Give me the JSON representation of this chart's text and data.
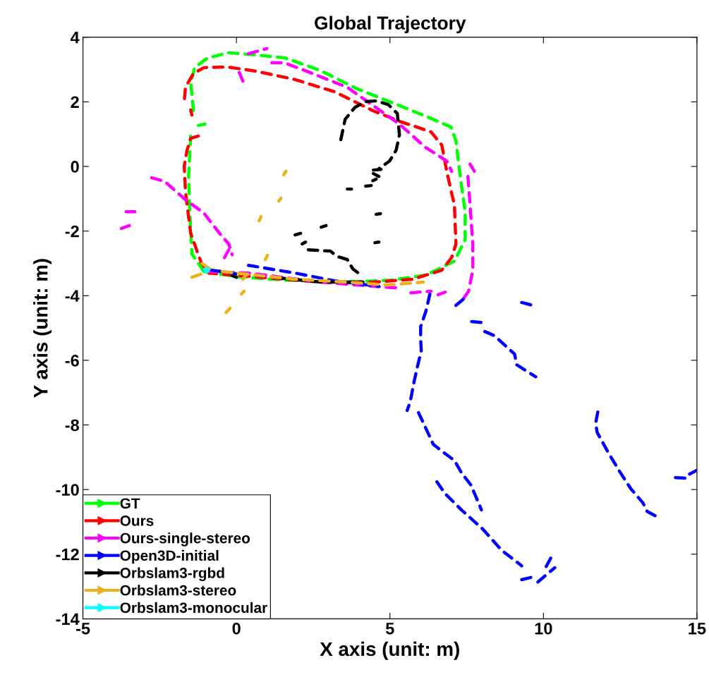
{
  "chart_data": {
    "type": "line",
    "title": "Global Trajectory",
    "xlabel": "X axis (unit: m)",
    "ylabel": "Y axis (unit: m)",
    "xlim": [
      -5,
      15
    ],
    "xticks": [
      -5,
      0,
      5,
      10,
      15
    ],
    "ylim": [
      -14,
      4
    ],
    "yticks": [
      -14,
      -12,
      -10,
      -8,
      -6,
      -4,
      -2,
      0,
      2,
      4
    ],
    "grid": false,
    "legend": "bottom left",
    "line_style": "dashed",
    "marker": "none",
    "series": [
      {
        "name": "GT",
        "color": "#00ff00",
        "x": [
          -1.06,
          -1.45,
          -1.52,
          -1.56,
          -1.49,
          null,
          -1.24,
          -1.03,
          null,
          -1.4,
          -1.49,
          -1.36,
          -0.94,
          -0.25,
          0.67,
          1.59,
          2.74,
          3.89,
          5.03,
          6.18,
          6.99,
          7.15,
          7.29,
          7.45,
          7.45,
          7.1,
          6.18,
          5.03,
          3.43,
          1.59,
          -0.02,
          -1.06
        ],
        "values": [
          -3.25,
          -2.71,
          -1.4,
          -0.31,
          0.94,
          null,
          1.27,
          1.31,
          null,
          1.73,
          2.6,
          3.06,
          3.36,
          3.52,
          3.45,
          3.36,
          2.97,
          2.42,
          1.99,
          1.55,
          1.22,
          0.79,
          -0.31,
          -1.4,
          -2.27,
          -2.93,
          -3.36,
          -3.52,
          -3.58,
          -3.52,
          -3.41,
          -3.25
        ]
      },
      {
        "name": "Ours",
        "color": "#ff0000",
        "x": [
          -1.24,
          -1.49,
          -1.61,
          -1.7,
          -1.66,
          -1.49,
          -1.15,
          -0.9,
          1.06,
          2.76,
          4.46,
          5.75,
          6.69,
          7.01,
          7.15,
          7.1,
          6.85,
          6.69,
          6.34,
          5.31,
          4.46,
          3.2,
          1.91,
          0.64,
          -0.3,
          -1.06,
          -1.4,
          -1.66,
          -1.7,
          null,
          -1.49,
          -1.45
        ],
        "values": [
          0.94,
          0.87,
          0.5,
          0.02,
          -0.79,
          -2.07,
          -2.97,
          -3.3,
          -3.45,
          -3.58,
          -3.58,
          -3.49,
          -3.21,
          -2.82,
          -2.4,
          -1.2,
          -0.15,
          0.66,
          1.07,
          1.4,
          1.72,
          2.31,
          2.69,
          2.95,
          3.08,
          3.06,
          2.88,
          2.45,
          2.03,
          null,
          1.75,
          1.59
        ]
      },
      {
        "name": "Ours-single-stereo",
        "color": "#ff00ff",
        "x": [
          -3.75,
          -3.49,
          null,
          -3.59,
          -3.31,
          null,
          -2.76,
          -2.34,
          -1.66,
          -1.06,
          -0.55,
          -0.25,
          -0.14,
          null,
          -0.39,
          -0.25,
          null,
          0.21,
          0.05,
          null,
          0.39,
          0.99,
          null,
          1.15,
          1.56,
          2.34,
          3.61,
          4.46,
          5.31,
          6.16,
          6.85,
          7.01,
          null,
          7.61,
          7.75,
          null,
          7.54,
          7.61,
          7.7,
          7.7,
          7.56,
          7.4,
          null,
          -0.94,
          0.39,
          2.76,
          4.74,
          5.33,
          null,
          5.68,
          6.34,
          null,
          6.57,
          6.8
        ],
        "values": [
          -1.92,
          -1.83,
          null,
          -1.4,
          -1.4,
          null,
          -0.35,
          -0.46,
          -1.03,
          -1.44,
          -2.07,
          -2.4,
          -2.73,
          null,
          -2.82,
          -2.58,
          null,
          2.64,
          3.01,
          null,
          3.49,
          3.65,
          null,
          3.21,
          3.21,
          2.93,
          2.45,
          1.88,
          1.31,
          0.59,
          0.17,
          -0.15,
          null,
          0.07,
          -0.15,
          null,
          -0.31,
          -1.2,
          -2.4,
          -3.21,
          -3.86,
          -4.08,
          null,
          -3.25,
          -3.3,
          -3.58,
          -3.73,
          -3.76,
          null,
          -3.91,
          -3.86,
          null,
          -3.97,
          -3.89
        ]
      },
      {
        "name": "Open3D-initial",
        "color": "#0000ff",
        "x": [
          -0.8,
          -0.02,
          null,
          0.39,
          1.91,
          3.2,
          4.64,
          null,
          6.3,
          6.18,
          6.0,
          6.0,
          6.02,
          5.91,
          5.79,
          5.66,
          5.56,
          null,
          5.93,
          6.07,
          6.41,
          6.8,
          7.1,
          7.33,
          7.63,
          7.79,
          7.98,
          null,
          6.53,
          6.8,
          7.33,
          8.02,
          8.64,
          9.29,
          null,
          9.29,
          9.63,
          null,
          9.82,
          10.09,
          10.37,
          null,
          10.09,
          10.25,
          null,
          7.15,
          7.45,
          null,
          9.29,
          9.66,
          null,
          7.66,
          8.0,
          null,
          8.09,
          8.41,
          9.06,
          9.13,
          9.75,
          null,
          11.77,
          11.7,
          11.75,
          12.09,
          12.46,
          12.85,
          13.24,
          13.38,
          13.72,
          null,
          14.3,
          14.64,
          null,
          14.76,
          14.98
        ],
        "values": [
          -3.21,
          -3.32,
          null,
          -3.06,
          -3.3,
          -3.54,
          -3.71,
          null,
          -3.95,
          -4.45,
          -4.96,
          -5.33,
          -5.7,
          -6.14,
          -6.64,
          -7.29,
          -7.55,
          null,
          -7.62,
          -7.9,
          -8.6,
          -8.89,
          -9.1,
          -9.48,
          -9.85,
          -10.2,
          -10.63,
          null,
          -9.76,
          -10.13,
          -10.63,
          -11.22,
          -11.88,
          -12.36,
          null,
          -12.79,
          -12.71,
          null,
          -12.86,
          -12.64,
          -12.42,
          null,
          -12.38,
          -12.1,
          null,
          -4.3,
          -4.06,
          null,
          -4.21,
          -4.3,
          null,
          -4.8,
          -4.83,
          null,
          -5.11,
          -5.24,
          -5.81,
          -6.14,
          -6.51,
          null,
          -7.6,
          -7.95,
          -8.23,
          -8.82,
          -9.41,
          -9.98,
          -10.41,
          -10.68,
          -10.85,
          null,
          -9.63,
          -9.65,
          null,
          -9.52,
          -9.41
        ]
      },
      {
        "name": "Orbslam3-rgbd",
        "color": "#000000",
        "x": [
          3.4,
          3.54,
          3.86,
          4.21,
          4.55,
          4.94,
          5.24,
          5.31,
          5.2,
          4.99,
          4.64,
          null,
          4.46,
          4.71,
          null,
          4.46,
          4.64,
          null,
          4.44,
          4.55,
          null,
          4.21,
          4.39,
          null,
          3.61,
          3.75,
          null,
          4.55,
          4.69,
          null,
          2.76,
          2.92,
          null,
          1.91,
          2.09,
          null,
          4.51,
          4.64,
          null,
          2.14,
          2.25,
          null,
          2.34,
          3.06,
          3.29,
          3.61,
          3.79,
          4.0,
          null,
          -0.14,
          0.0,
          null,
          1.4,
          2.76,
          4.11
        ],
        "values": [
          0.83,
          1.46,
          1.83,
          2.01,
          2.03,
          1.92,
          1.64,
          0.98,
          0.5,
          0.17,
          -0.07,
          null,
          -0.11,
          -0.09,
          null,
          -0.22,
          -0.31,
          null,
          -0.44,
          -0.39,
          null,
          -0.61,
          -0.59,
          null,
          -0.7,
          -0.7,
          null,
          -1.48,
          -1.46,
          null,
          -1.88,
          -1.83,
          null,
          -2.12,
          -2.07,
          null,
          -2.36,
          -2.34,
          null,
          -2.4,
          -2.34,
          null,
          -2.58,
          -2.62,
          -2.79,
          -2.88,
          -3.17,
          -3.32,
          null,
          -3.38,
          -3.43,
          null,
          -3.45,
          -3.58,
          -3.58
        ]
      },
      {
        "name": "Orbslam3-stereo",
        "color": "#edb120",
        "x": [
          1.61,
          1.54,
          null,
          1.45,
          1.38,
          null,
          0.8,
          0.74,
          null,
          1.01,
          0.94,
          null,
          0.3,
          0.21,
          null,
          0.25,
          0.16,
          null,
          -0.21,
          -0.34,
          null,
          -1.45,
          -1.06,
          null,
          -1.12,
          -0.88,
          null,
          -0.46,
          0.39,
          1.91,
          3.61,
          4.9,
          6.09
        ],
        "values": [
          -0.15,
          -0.26,
          null,
          -0.98,
          -1.07,
          null,
          -1.55,
          -1.68,
          null,
          -2.75,
          -2.88,
          null,
          -3.38,
          -3.49,
          null,
          -3.86,
          -3.95,
          null,
          -4.39,
          -4.52,
          null,
          -3.43,
          -3.3,
          null,
          -3.0,
          -3.16,
          null,
          -3.25,
          -3.34,
          -3.49,
          -3.58,
          -3.67,
          -3.58
        ]
      },
      {
        "name": "Orbslam3-monocular",
        "color": "#00ffff",
        "type": "scatter",
        "x": [
          -0.97
        ],
        "values": [
          -3.21
        ]
      }
    ]
  }
}
